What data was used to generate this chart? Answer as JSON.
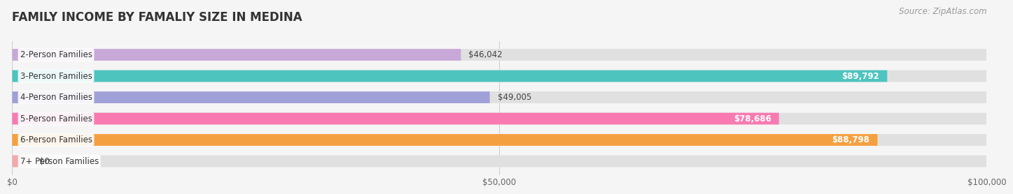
{
  "title": "FAMILY INCOME BY FAMALIY SIZE IN MEDINA",
  "source": "Source: ZipAtlas.com",
  "categories": [
    "2-Person Families",
    "3-Person Families",
    "4-Person Families",
    "5-Person Families",
    "6-Person Families",
    "7+ Person Families"
  ],
  "values": [
    46042,
    89792,
    49005,
    78686,
    88798,
    0
  ],
  "bar_colors": [
    "#c8a8d8",
    "#4dc4be",
    "#a0a0d8",
    "#f87ab0",
    "#f5a040",
    "#f4a8a8"
  ],
  "xlim": [
    0,
    100000
  ],
  "xticks": [
    0,
    50000,
    100000
  ],
  "xtick_labels": [
    "$0",
    "$50,000",
    "$100,000"
  ],
  "background_color": "#f5f5f5",
  "bar_bg_color": "#e0e0e0",
  "title_color": "#333333",
  "title_fontsize": 12,
  "label_fontsize": 8.5,
  "value_fontsize": 8.5,
  "source_fontsize": 8.5,
  "bar_height": 0.55,
  "value_threshold": 50000
}
